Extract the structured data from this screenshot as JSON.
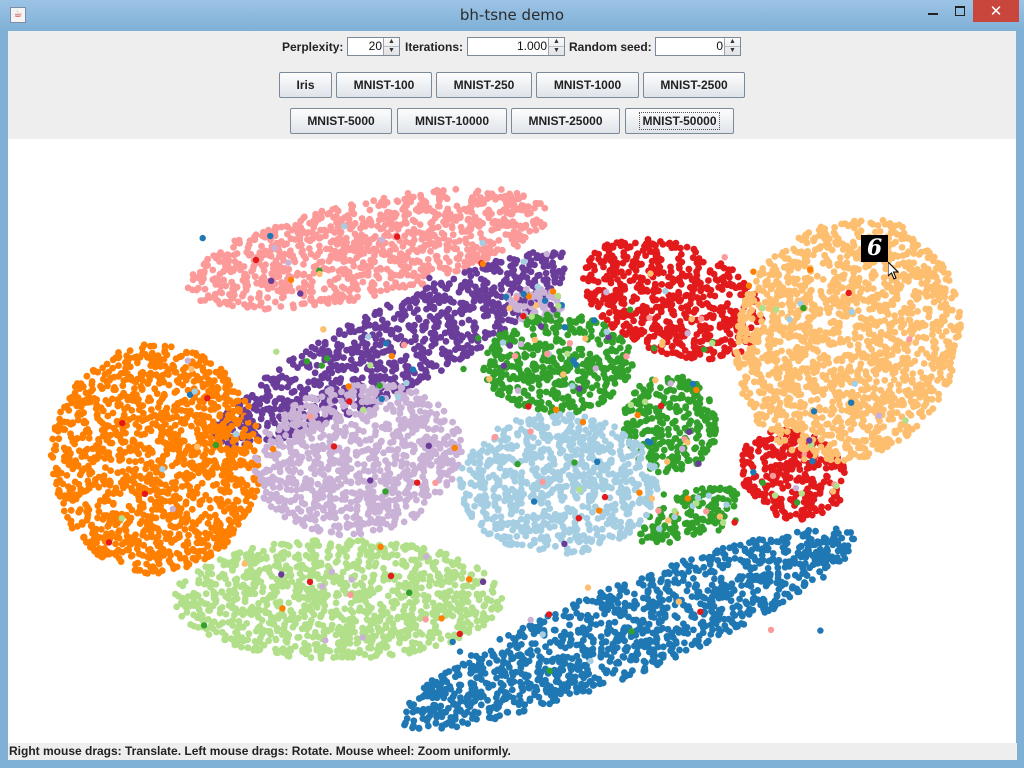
{
  "window": {
    "title": "bh-tsne demo",
    "close_glyph": "✕"
  },
  "controls": {
    "perplexity_label": "Perplexity:",
    "perplexity_value": "20",
    "iterations_label": "Iterations:",
    "iterations_value": "1.000",
    "seed_label": "Random seed:",
    "seed_value": "0"
  },
  "datasets_row1": [
    "Iris",
    "MNIST-100",
    "MNIST-250",
    "MNIST-1000",
    "MNIST-2500"
  ],
  "datasets_row2": [
    "MNIST-5000",
    "MNIST-10000",
    "MNIST-25000",
    "MNIST-50000"
  ],
  "focused_dataset": "MNIST-50000",
  "tooltip": {
    "digit": "6"
  },
  "status": {
    "text": "Right mouse drags: Translate. Left mouse drags: Rotate. Mouse wheel: Zoom uniformly."
  },
  "colors": {
    "orange": "#ff7f00",
    "purple": "#6a3d9a",
    "pink": "#fb9a99",
    "lavender": "#cab2d6",
    "green": "#33a02c",
    "red": "#e31a1c",
    "peach": "#fdbf6f",
    "light_blue": "#a6cee3",
    "light_green": "#b2df8a",
    "blue": "#1f78b4"
  }
}
